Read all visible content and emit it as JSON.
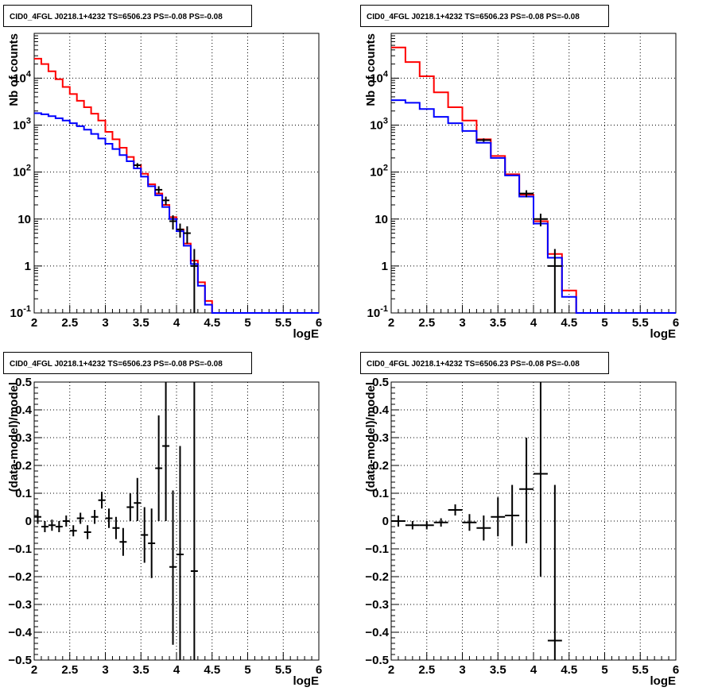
{
  "panel_title": "CID0_4FGL J0218.1+4232 TS=6506.23 PS=-0.08 PS=-0.08",
  "chart_data": [
    {
      "id": "top-left",
      "type": "line",
      "title": "CID0_4FGL J0218.1+4232 TS=6506.23 PS=-0.08 PS=-0.08",
      "xlabel": "logE",
      "ylabel": "Nb of counts",
      "xlim": [
        2,
        6
      ],
      "ylim": [
        0.1,
        90000
      ],
      "log_y": true,
      "grid": true,
      "x_ticks": [
        "2",
        "2.5",
        "3",
        "3.5",
        "4",
        "4.5",
        "5",
        "5.5",
        "6"
      ],
      "y_ticks": [
        "10^-1",
        "1",
        "10",
        "10^2",
        "10^3",
        "10^4"
      ],
      "series": [
        {
          "color": "#ff0000",
          "bin_edges": [
            2.0,
            2.1,
            2.2,
            2.3,
            2.4,
            2.5,
            2.6,
            2.7,
            2.8,
            2.9,
            3.0,
            3.1,
            3.2,
            3.3,
            3.4,
            3.5,
            3.6,
            3.7,
            3.8,
            3.9,
            4.0,
            4.1,
            4.2,
            4.3,
            4.4,
            4.5,
            4.6,
            6.0
          ],
          "values": [
            26000,
            20000,
            14000,
            9500,
            6500,
            4600,
            3300,
            2400,
            1750,
            1250,
            720,
            500,
            330,
            210,
            140,
            92,
            55,
            35,
            20,
            11,
            6,
            3,
            1.3,
            0.45,
            0.18,
            0.1,
            0.1
          ]
        },
        {
          "color": "#0000ff",
          "bin_edges": [
            2.0,
            2.1,
            2.2,
            2.3,
            2.4,
            2.5,
            2.6,
            2.7,
            2.8,
            2.9,
            3.0,
            3.1,
            3.2,
            3.3,
            3.4,
            3.5,
            3.6,
            3.7,
            3.8,
            3.9,
            4.0,
            4.1,
            4.2,
            4.3,
            4.4,
            4.5,
            4.6,
            6.0
          ],
          "values": [
            1800,
            1700,
            1550,
            1400,
            1250,
            1100,
            950,
            800,
            650,
            520,
            400,
            310,
            230,
            170,
            120,
            80,
            50,
            32,
            18,
            10,
            5.5,
            2.7,
            1.1,
            0.38,
            0.15,
            0.1,
            0.1
          ]
        },
        {
          "color": "#000000",
          "points": [
            {
              "x": 3.45,
              "y": 140,
              "xerr": 0.05,
              "ylo": 125,
              "yhi": 155
            },
            {
              "x": 3.75,
              "y": 42,
              "xerr": 0.05,
              "ylo": 35,
              "yhi": 50
            },
            {
              "x": 3.85,
              "y": 25,
              "xerr": 0.05,
              "ylo": 20,
              "yhi": 30
            },
            {
              "x": 3.95,
              "y": 9,
              "xerr": 0.05,
              "ylo": 6,
              "yhi": 12
            },
            {
              "x": 4.05,
              "y": 6,
              "xerr": 0.05,
              "ylo": 4,
              "yhi": 8
            },
            {
              "x": 4.15,
              "y": 5,
              "xerr": 0.05,
              "ylo": 3,
              "yhi": 7
            },
            {
              "x": 4.25,
              "y": 1,
              "xerr": 0.05,
              "ylo": 0.1,
              "yhi": 2.3
            }
          ]
        }
      ]
    },
    {
      "id": "top-right",
      "type": "line",
      "title": "CID0_4FGL J0218.1+4232 TS=6506.23 PS=-0.08 PS=-0.08",
      "xlabel": "logE",
      "ylabel": "Nb of counts",
      "xlim": [
        2,
        6
      ],
      "ylim": [
        0.1,
        90000
      ],
      "log_y": true,
      "grid": true,
      "x_ticks": [
        "2",
        "2.5",
        "3",
        "3.5",
        "4",
        "4.5",
        "5",
        "5.5",
        "6"
      ],
      "y_ticks": [
        "10^-1",
        "1",
        "10",
        "10^2",
        "10^3",
        "10^4"
      ],
      "series": [
        {
          "color": "#ff0000",
          "bin_edges": [
            2.0,
            2.2,
            2.4,
            2.6,
            2.8,
            3.0,
            3.2,
            3.4,
            3.6,
            3.8,
            4.0,
            4.2,
            4.4,
            4.6,
            6.0
          ],
          "values": [
            45000,
            22000,
            11000,
            5000,
            2400,
            1250,
            500,
            220,
            90,
            33,
            9,
            1.8,
            0.3,
            0.1
          ]
        },
        {
          "color": "#0000ff",
          "bin_edges": [
            2.0,
            2.2,
            2.4,
            2.6,
            2.8,
            3.0,
            3.2,
            3.4,
            3.6,
            3.8,
            4.0,
            4.2,
            4.4,
            4.6,
            6.0
          ],
          "values": [
            3400,
            3000,
            2200,
            1500,
            1100,
            750,
            420,
            200,
            85,
            30,
            8,
            1.5,
            0.22,
            0.1
          ]
        },
        {
          "color": "#000000",
          "points": [
            {
              "x": 3.3,
              "y": 480,
              "xerr": 0.1,
              "ylo": 440,
              "yhi": 520
            },
            {
              "x": 3.9,
              "y": 35,
              "xerr": 0.1,
              "ylo": 29,
              "yhi": 41
            },
            {
              "x": 4.1,
              "y": 10,
              "xerr": 0.1,
              "ylo": 7,
              "yhi": 13
            },
            {
              "x": 4.3,
              "y": 1,
              "xerr": 0.1,
              "ylo": 0.1,
              "yhi": 2.3
            }
          ]
        }
      ]
    },
    {
      "id": "bottom-left",
      "type": "scatter",
      "title": "CID0_4FGL J0218.1+4232 TS=6506.23 PS=-0.08 PS=-0.08",
      "xlabel": "logE",
      "ylabel": "(data-model)/model",
      "xlim": [
        2,
        6
      ],
      "ylim": [
        -0.5,
        0.5
      ],
      "grid": true,
      "x_ticks": [
        "2",
        "2.5",
        "3",
        "3.5",
        "4",
        "4.5",
        "5",
        "5.5",
        "6"
      ],
      "y_ticks": [
        "-0.5",
        "-0.4",
        "-0.3",
        "-0.2",
        "-0.1",
        "0",
        "0.1",
        "0.2",
        "0.3",
        "0.4",
        "0.5"
      ],
      "series": [
        {
          "color": "#000000",
          "points": [
            {
              "x": 2.05,
              "y": 0.015,
              "xerr": 0.05,
              "ylo": -0.01,
              "yhi": 0.04
            },
            {
              "x": 2.15,
              "y": -0.02,
              "xerr": 0.05,
              "ylo": -0.04,
              "yhi": 0.0
            },
            {
              "x": 2.25,
              "y": -0.015,
              "xerr": 0.05,
              "ylo": -0.035,
              "yhi": 0.005
            },
            {
              "x": 2.35,
              "y": -0.02,
              "xerr": 0.05,
              "ylo": -0.04,
              "yhi": 0.0
            },
            {
              "x": 2.45,
              "y": 0.0,
              "xerr": 0.05,
              "ylo": -0.02,
              "yhi": 0.02
            },
            {
              "x": 2.55,
              "y": -0.035,
              "xerr": 0.05,
              "ylo": -0.055,
              "yhi": -0.015
            },
            {
              "x": 2.65,
              "y": 0.01,
              "xerr": 0.05,
              "ylo": -0.01,
              "yhi": 0.03
            },
            {
              "x": 2.75,
              "y": -0.04,
              "xerr": 0.05,
              "ylo": -0.065,
              "yhi": -0.015
            },
            {
              "x": 2.85,
              "y": 0.015,
              "xerr": 0.05,
              "ylo": -0.01,
              "yhi": 0.04
            },
            {
              "x": 2.95,
              "y": 0.075,
              "xerr": 0.05,
              "ylo": 0.045,
              "yhi": 0.105
            },
            {
              "x": 3.05,
              "y": 0.01,
              "xerr": 0.05,
              "ylo": -0.025,
              "yhi": 0.045
            },
            {
              "x": 3.15,
              "y": -0.025,
              "xerr": 0.05,
              "ylo": -0.065,
              "yhi": 0.015
            },
            {
              "x": 3.25,
              "y": -0.075,
              "xerr": 0.05,
              "ylo": -0.125,
              "yhi": -0.025
            },
            {
              "x": 3.35,
              "y": 0.05,
              "xerr": 0.05,
              "ylo": 0.0,
              "yhi": 0.1
            },
            {
              "x": 3.45,
              "y": 0.065,
              "xerr": 0.05,
              "ylo": 0.0,
              "yhi": 0.155
            },
            {
              "x": 3.55,
              "y": -0.05,
              "xerr": 0.05,
              "ylo": -0.15,
              "yhi": 0.05
            },
            {
              "x": 3.65,
              "y": -0.08,
              "xerr": 0.05,
              "ylo": -0.205,
              "yhi": 0.045
            },
            {
              "x": 3.75,
              "y": 0.19,
              "xerr": 0.05,
              "ylo": 0.0,
              "yhi": 0.38
            },
            {
              "x": 3.85,
              "y": 0.27,
              "xerr": 0.05,
              "ylo": 0.0,
              "yhi": 0.5
            },
            {
              "x": 3.95,
              "y": -0.165,
              "xerr": 0.05,
              "ylo": -0.445,
              "yhi": 0.11
            },
            {
              "x": 4.05,
              "y": -0.12,
              "xerr": 0.05,
              "ylo": -0.5,
              "yhi": 0.27
            },
            {
              "x": 4.25,
              "y": -0.18,
              "xerr": 0.05,
              "ylo": -0.5,
              "yhi": 0.5
            }
          ]
        }
      ]
    },
    {
      "id": "bottom-right",
      "type": "scatter",
      "title": "CID0_4FGL J0218.1+4232 TS=6506.23 PS=-0.08 PS=-0.08",
      "xlabel": "logE",
      "ylabel": "(data-model)/model",
      "xlim": [
        2,
        6
      ],
      "ylim": [
        -0.5,
        0.5
      ],
      "grid": true,
      "x_ticks": [
        "2",
        "2.5",
        "3",
        "3.5",
        "4",
        "4.5",
        "5",
        "5.5",
        "6"
      ],
      "y_ticks": [
        "-0.5",
        "-0.4",
        "-0.3",
        "-0.2",
        "-0.1",
        "0",
        "0.1",
        "0.2",
        "0.3",
        "0.4",
        "0.5"
      ],
      "series": [
        {
          "color": "#000000",
          "points": [
            {
              "x": 2.1,
              "y": 0.0,
              "xerr": 0.1,
              "ylo": -0.02,
              "yhi": 0.02
            },
            {
              "x": 2.3,
              "y": -0.015,
              "xerr": 0.1,
              "ylo": -0.03,
              "yhi": 0.0
            },
            {
              "x": 2.5,
              "y": -0.015,
              "xerr": 0.1,
              "ylo": -0.03,
              "yhi": 0.0
            },
            {
              "x": 2.7,
              "y": -0.005,
              "xerr": 0.1,
              "ylo": -0.02,
              "yhi": 0.01
            },
            {
              "x": 2.9,
              "y": 0.04,
              "xerr": 0.1,
              "ylo": 0.02,
              "yhi": 0.06
            },
            {
              "x": 3.1,
              "y": -0.005,
              "xerr": 0.1,
              "ylo": -0.035,
              "yhi": 0.025
            },
            {
              "x": 3.3,
              "y": -0.025,
              "xerr": 0.1,
              "ylo": -0.07,
              "yhi": 0.02
            },
            {
              "x": 3.5,
              "y": 0.015,
              "xerr": 0.1,
              "ylo": -0.055,
              "yhi": 0.085
            },
            {
              "x": 3.7,
              "y": 0.02,
              "xerr": 0.1,
              "ylo": -0.09,
              "yhi": 0.13
            },
            {
              "x": 3.9,
              "y": 0.115,
              "xerr": 0.1,
              "ylo": -0.08,
              "yhi": 0.3
            },
            {
              "x": 4.1,
              "y": 0.17,
              "xerr": 0.1,
              "ylo": -0.2,
              "yhi": 0.5
            },
            {
              "x": 4.3,
              "y": -0.43,
              "xerr": 0.1,
              "ylo": -0.5,
              "yhi": 0.13
            }
          ]
        }
      ]
    }
  ]
}
